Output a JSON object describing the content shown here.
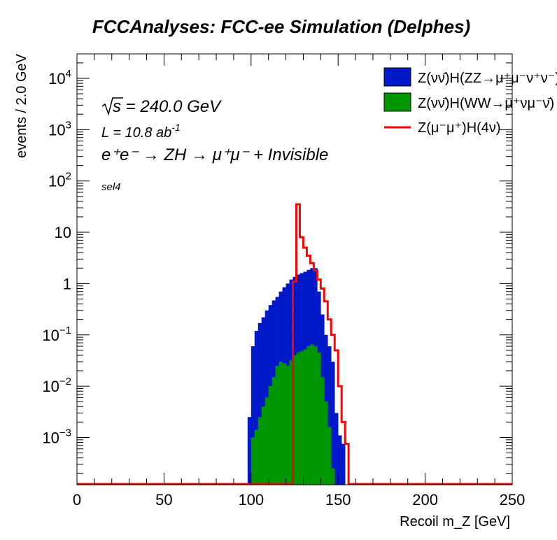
{
  "chart_data": {
    "type": "histogram",
    "title": "FCCAnalyses: FCC-ee Simulation (Delphes)",
    "xlabel": "Recoil m_Z [GeV]",
    "ylabel": "events / 2.0 GeV",
    "xlim": [
      0,
      250
    ],
    "ylim": [
      0.00012,
      30000
    ],
    "yscale": "log",
    "x_ticks": [
      0,
      50,
      100,
      150,
      200,
      250
    ],
    "y_ticks": [
      {
        "value": 0.001,
        "base": "10",
        "exp": "−3"
      },
      {
        "value": 0.01,
        "base": "10",
        "exp": "−2"
      },
      {
        "value": 0.1,
        "base": "10",
        "exp": "−1"
      },
      {
        "value": 1,
        "base": "1",
        "exp": ""
      },
      {
        "value": 10,
        "base": "10",
        "exp": ""
      },
      {
        "value": 100,
        "base": "10",
        "exp": "2"
      },
      {
        "value": 1000,
        "base": "10",
        "exp": "3"
      },
      {
        "value": 10000,
        "base": "10",
        "exp": "4"
      }
    ],
    "bin_width": 2.0,
    "annotations": {
      "sqrt_s": "s = 240.0 GeV",
      "lumi_prefix": "L = 10.8 ab",
      "lumi_exp": "-1",
      "process": "e⁺e⁻ → ZH → μ⁺μ⁻ + Invisible",
      "selection": "sel4"
    },
    "legend_position": "top-right",
    "series": [
      {
        "name": "Z(νν̄)H(ZZ→μ⁺μ⁻ν⁺ν⁻)",
        "color": "#0019c8",
        "style": "stacked-fill",
        "x_start": 98,
        "values": [
          0.0025,
          0.06,
          0.12,
          0.17,
          0.22,
          0.3,
          0.38,
          0.47,
          0.55,
          0.7,
          0.85,
          1.0,
          1.2,
          1.35,
          1.5,
          1.6,
          1.7,
          1.85,
          2.0,
          2.0,
          0.7,
          0.25,
          0.1,
          0.06,
          0.03,
          0.003,
          0.0011,
          0.00075
        ]
      },
      {
        "name": "Z(νν̄)H(WW→μ⁺νμ⁻ν̄)",
        "color": "#009600",
        "style": "stacked-fill",
        "x_start": 100,
        "values": [
          0.001,
          0.0014,
          0.0025,
          0.004,
          0.006,
          0.01,
          0.015,
          0.025,
          0.03,
          0.028,
          0.025,
          0.032,
          0.04,
          0.045,
          0.048,
          0.052,
          0.06,
          0.065,
          0.06,
          0.045,
          0.015,
          0.005,
          0.0016,
          0.00025,
          0.00012,
          0.00012,
          0.00012
        ]
      },
      {
        "name": "Z(μ⁻μ⁺)H(4ν)",
        "color": "#ff0000",
        "style": "step-line",
        "x_start": 124,
        "values": [
          1.1,
          35,
          8,
          5,
          3.5,
          2.5,
          1.8,
          1.2,
          0.8,
          0.45,
          0.2,
          0.1,
          0.05,
          0.01,
          0.002,
          0.00075
        ]
      }
    ]
  }
}
